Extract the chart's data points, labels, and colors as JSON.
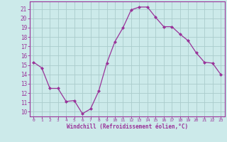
{
  "x": [
    0,
    1,
    2,
    3,
    4,
    5,
    6,
    7,
    8,
    9,
    10,
    11,
    12,
    13,
    14,
    15,
    16,
    17,
    18,
    19,
    20,
    21,
    22,
    23
  ],
  "y": [
    15.3,
    14.7,
    12.5,
    12.5,
    11.1,
    11.2,
    9.8,
    10.3,
    12.2,
    15.2,
    17.5,
    19.0,
    20.9,
    21.2,
    21.2,
    20.1,
    19.1,
    19.1,
    18.3,
    17.6,
    16.3,
    15.3,
    15.2,
    14.0
  ],
  "line_color": "#993399",
  "marker": "D",
  "marker_size": 2,
  "bg_color": "#cceaea",
  "grid_color": "#aacccc",
  "xlabel": "Windchill (Refroidissement éolien,°C)",
  "xlabel_color": "#993399",
  "tick_color": "#993399",
  "ylim": [
    9.5,
    21.8
  ],
  "xlim": [
    -0.5,
    23.5
  ],
  "yticks": [
    10,
    11,
    12,
    13,
    14,
    15,
    16,
    17,
    18,
    19,
    20,
    21
  ],
  "xticks": [
    0,
    1,
    2,
    3,
    4,
    5,
    6,
    7,
    8,
    9,
    10,
    11,
    12,
    13,
    14,
    15,
    16,
    17,
    18,
    19,
    20,
    21,
    22,
    23
  ]
}
